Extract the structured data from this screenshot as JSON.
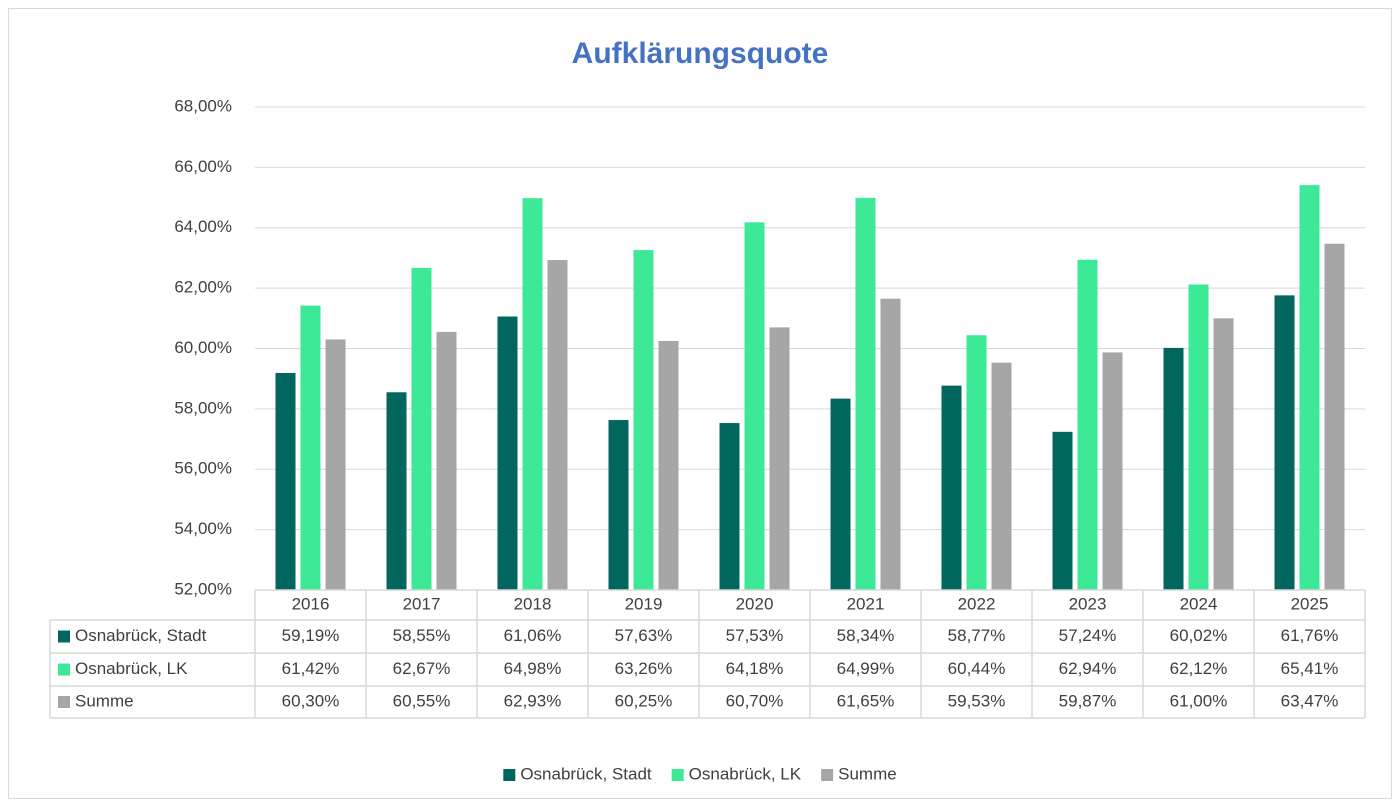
{
  "chart_data": {
    "type": "bar",
    "title": "Aufklärungsquote",
    "categories": [
      "2016",
      "2017",
      "2018",
      "2019",
      "2020",
      "2021",
      "2022",
      "2023",
      "2024",
      "2025"
    ],
    "series": [
      {
        "name": "Osnabrück, Stadt",
        "color": "#00665e",
        "values": [
          59.19,
          58.55,
          61.06,
          57.63,
          57.53,
          58.34,
          58.77,
          57.24,
          60.02,
          61.76
        ],
        "value_labels": [
          "59,19%",
          "58,55%",
          "61,06%",
          "57,63%",
          "57,53%",
          "58,34%",
          "58,77%",
          "57,24%",
          "60,02%",
          "61,76%"
        ]
      },
      {
        "name": "Osnabrück, LK",
        "color": "#3de896",
        "values": [
          61.42,
          62.67,
          64.98,
          63.26,
          64.18,
          64.99,
          60.44,
          62.94,
          62.12,
          65.41
        ],
        "value_labels": [
          "61,42%",
          "62,67%",
          "64,98%",
          "63,26%",
          "64,18%",
          "64,99%",
          "60,44%",
          "62,94%",
          "62,12%",
          "65,41%"
        ]
      },
      {
        "name": "Summe",
        "color": "#a6a6a6",
        "values": [
          60.3,
          60.55,
          62.93,
          60.25,
          60.7,
          61.65,
          59.53,
          59.87,
          61.0,
          63.47
        ],
        "value_labels": [
          "60,30%",
          "60,55%",
          "62,93%",
          "60,25%",
          "60,70%",
          "61,65%",
          "59,53%",
          "59,87%",
          "61,00%",
          "63,47%"
        ]
      }
    ],
    "ylim": [
      52,
      68
    ],
    "yticks": [
      {
        "value": 52,
        "label": "52,00%"
      },
      {
        "value": 54,
        "label": "54,00%"
      },
      {
        "value": 56,
        "label": "56,00%"
      },
      {
        "value": 58,
        "label": "58,00%"
      },
      {
        "value": 60,
        "label": "60,00%"
      },
      {
        "value": 62,
        "label": "62,00%"
      },
      {
        "value": 64,
        "label": "64,00%"
      },
      {
        "value": 66,
        "label": "66,00%"
      },
      {
        "value": 68,
        "label": "68,00%"
      }
    ],
    "grid": true,
    "legend": "bottom",
    "data_table": true
  }
}
